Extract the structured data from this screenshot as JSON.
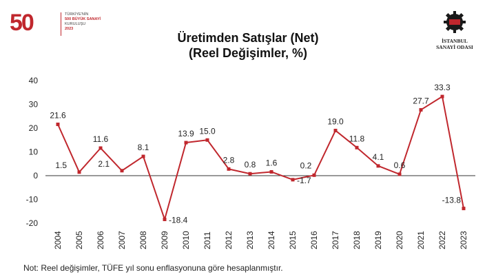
{
  "header": {
    "logo_number": "50",
    "logo_lines": [
      "TÜRKİYE'NİN",
      "500 BÜYÜK SANAYİ",
      "KURULUŞU",
      "2023"
    ],
    "org_lines": [
      "İSTANBUL",
      "SANAYİ ODASI"
    ],
    "title": "Üretimden Satışlar (Net)",
    "subtitle": "(Reel Değişimler, %)"
  },
  "footer": {
    "note": "Not: Reel değişimler, TÜFE yıl sonu enflasyonuna göre hesaplanmıştır."
  },
  "colors": {
    "series": "#c0272d",
    "grid": "#d9d9d9",
    "text": "#222222"
  },
  "chart_data": {
    "type": "line",
    "title": "Üretimden Satışlar (Net) (Reel Değişimler, %)",
    "categories": [
      "2004",
      "2005",
      "2006",
      "2007",
      "2008",
      "2009",
      "2010",
      "2011",
      "2012",
      "2013",
      "2014",
      "2015",
      "2016",
      "2017",
      "2018",
      "2019",
      "2020",
      "2021",
      "2022",
      "2023"
    ],
    "series": [
      {
        "values": [
          21.6,
          1.5,
          11.6,
          2.1,
          8.1,
          -18.4,
          13.9,
          15.0,
          2.8,
          0.8,
          1.6,
          -1.7,
          0.2,
          19.0,
          11.8,
          4.1,
          0.6,
          27.7,
          33.3,
          -13.8
        ]
      }
    ],
    "data_labels": [
      "21.6",
      "1.5",
      "11.6",
      "2.1",
      "8.1",
      "-18.4",
      "13.9",
      "15.0",
      "2.8",
      "0.8",
      "1.6",
      "-1.7",
      "0.2",
      "19.0",
      "11.8",
      "4.1",
      "0.6",
      "27.7",
      "33.3",
      "-13.8"
    ],
    "ylim": [
      -20,
      40
    ],
    "yticks": [
      "-20",
      "-10",
      "0",
      "10",
      "20",
      "30",
      "40"
    ],
    "grid": false,
    "legend": "none"
  }
}
